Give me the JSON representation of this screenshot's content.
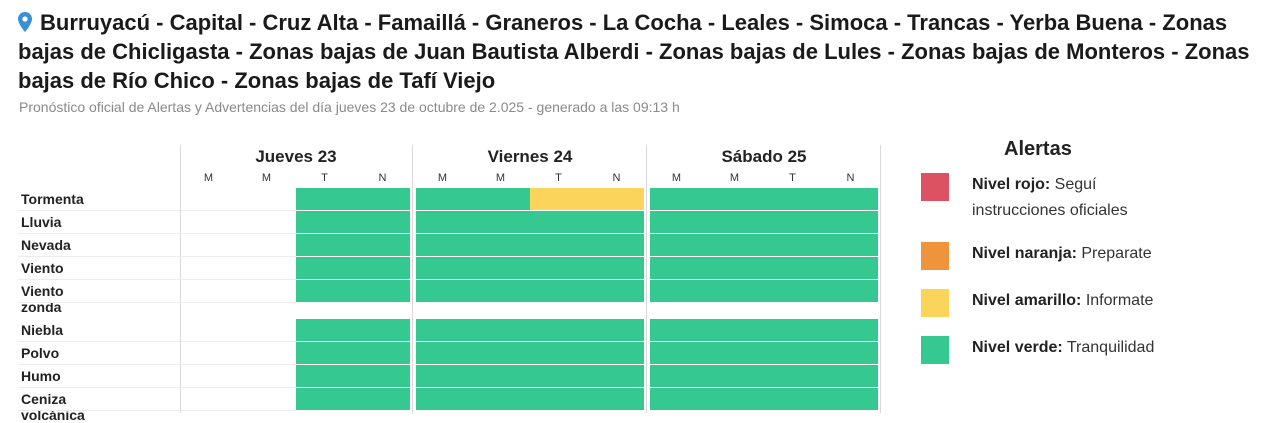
{
  "header": {
    "location_icon": "map-pin-icon",
    "title": "Burruyacú - Capital - Cruz Alta - Famaillá - Graneros - La Cocha - Leales - Simoca - Trancas - Yerba Buena - Zonas bajas de Chicligasta - Zonas bajas de Juan Bautista Alberdi - Zonas bajas de Lules - Zonas bajas de Monteros - Zonas bajas de Río Chico - Zonas bajas de Tafí Viejo",
    "subtitle": "Pronóstico oficial de Alertas y Advertencias del día jueves 23 de octubre de 2.025 - generado a las 09:13 h"
  },
  "days": [
    {
      "label": "Jueves 23",
      "slots": [
        "M",
        "M",
        "T",
        "N"
      ]
    },
    {
      "label": "Viernes 24",
      "slots": [
        "M",
        "M",
        "T",
        "N"
      ]
    },
    {
      "label": "Sábado 25",
      "slots": [
        "M",
        "M",
        "T",
        "N"
      ]
    }
  ],
  "rows": [
    {
      "label": "Tormenta",
      "levels": [
        "none",
        "none",
        "verde",
        "verde",
        "verde",
        "verde",
        "amarillo",
        "amarillo",
        "verde",
        "verde",
        "verde",
        "verde"
      ]
    },
    {
      "label": "Lluvia",
      "levels": [
        "none",
        "none",
        "verde",
        "verde",
        "verde",
        "verde",
        "verde",
        "verde",
        "verde",
        "verde",
        "verde",
        "verde"
      ]
    },
    {
      "label": "Nevada",
      "levels": [
        "none",
        "none",
        "verde",
        "verde",
        "verde",
        "verde",
        "verde",
        "verde",
        "verde",
        "verde",
        "verde",
        "verde"
      ]
    },
    {
      "label": "Viento",
      "levels": [
        "none",
        "none",
        "verde",
        "verde",
        "verde",
        "verde",
        "verde",
        "verde",
        "verde",
        "verde",
        "verde",
        "verde"
      ]
    },
    {
      "label": "Viento zonda",
      "levels": [
        "none",
        "none",
        "verde",
        "verde",
        "verde",
        "verde",
        "verde",
        "verde",
        "verde",
        "verde",
        "verde",
        "verde"
      ]
    },
    {
      "label": "Niebla",
      "levels": [
        "none",
        "none",
        "verde",
        "verde",
        "verde",
        "verde",
        "verde",
        "verde",
        "verde",
        "verde",
        "verde",
        "verde"
      ]
    },
    {
      "label": "Polvo",
      "levels": [
        "none",
        "none",
        "verde",
        "verde",
        "verde",
        "verde",
        "verde",
        "verde",
        "verde",
        "verde",
        "verde",
        "verde"
      ]
    },
    {
      "label": "Humo",
      "levels": [
        "none",
        "none",
        "verde",
        "verde",
        "verde",
        "verde",
        "verde",
        "verde",
        "verde",
        "verde",
        "verde",
        "verde"
      ]
    },
    {
      "label": "Ceniza volcánica",
      "levels": [
        "none",
        "none",
        "verde",
        "verde",
        "verde",
        "verde",
        "verde",
        "verde",
        "verde",
        "verde",
        "verde",
        "verde"
      ]
    }
  ],
  "legend": {
    "title": "Alertas",
    "items": [
      {
        "key": "rojo",
        "level": "Nivel rojo:",
        "desc": "Seguí instrucciones oficiales",
        "color": "#dc5263"
      },
      {
        "key": "naranja",
        "level": "Nivel naranja:",
        "desc": "Preparate",
        "color": "#f0943c"
      },
      {
        "key": "amarillo",
        "level": "Nivel amarillo:",
        "desc": "Informate",
        "color": "#fbd45c"
      },
      {
        "key": "verde",
        "level": "Nivel verde:",
        "desc": "Tranquilidad",
        "color": "#36c891"
      }
    ]
  },
  "colors": {
    "verde": "#36c891",
    "amarillo": "#fbd45c",
    "naranja": "#f0943c",
    "rojo": "#dc5263"
  }
}
